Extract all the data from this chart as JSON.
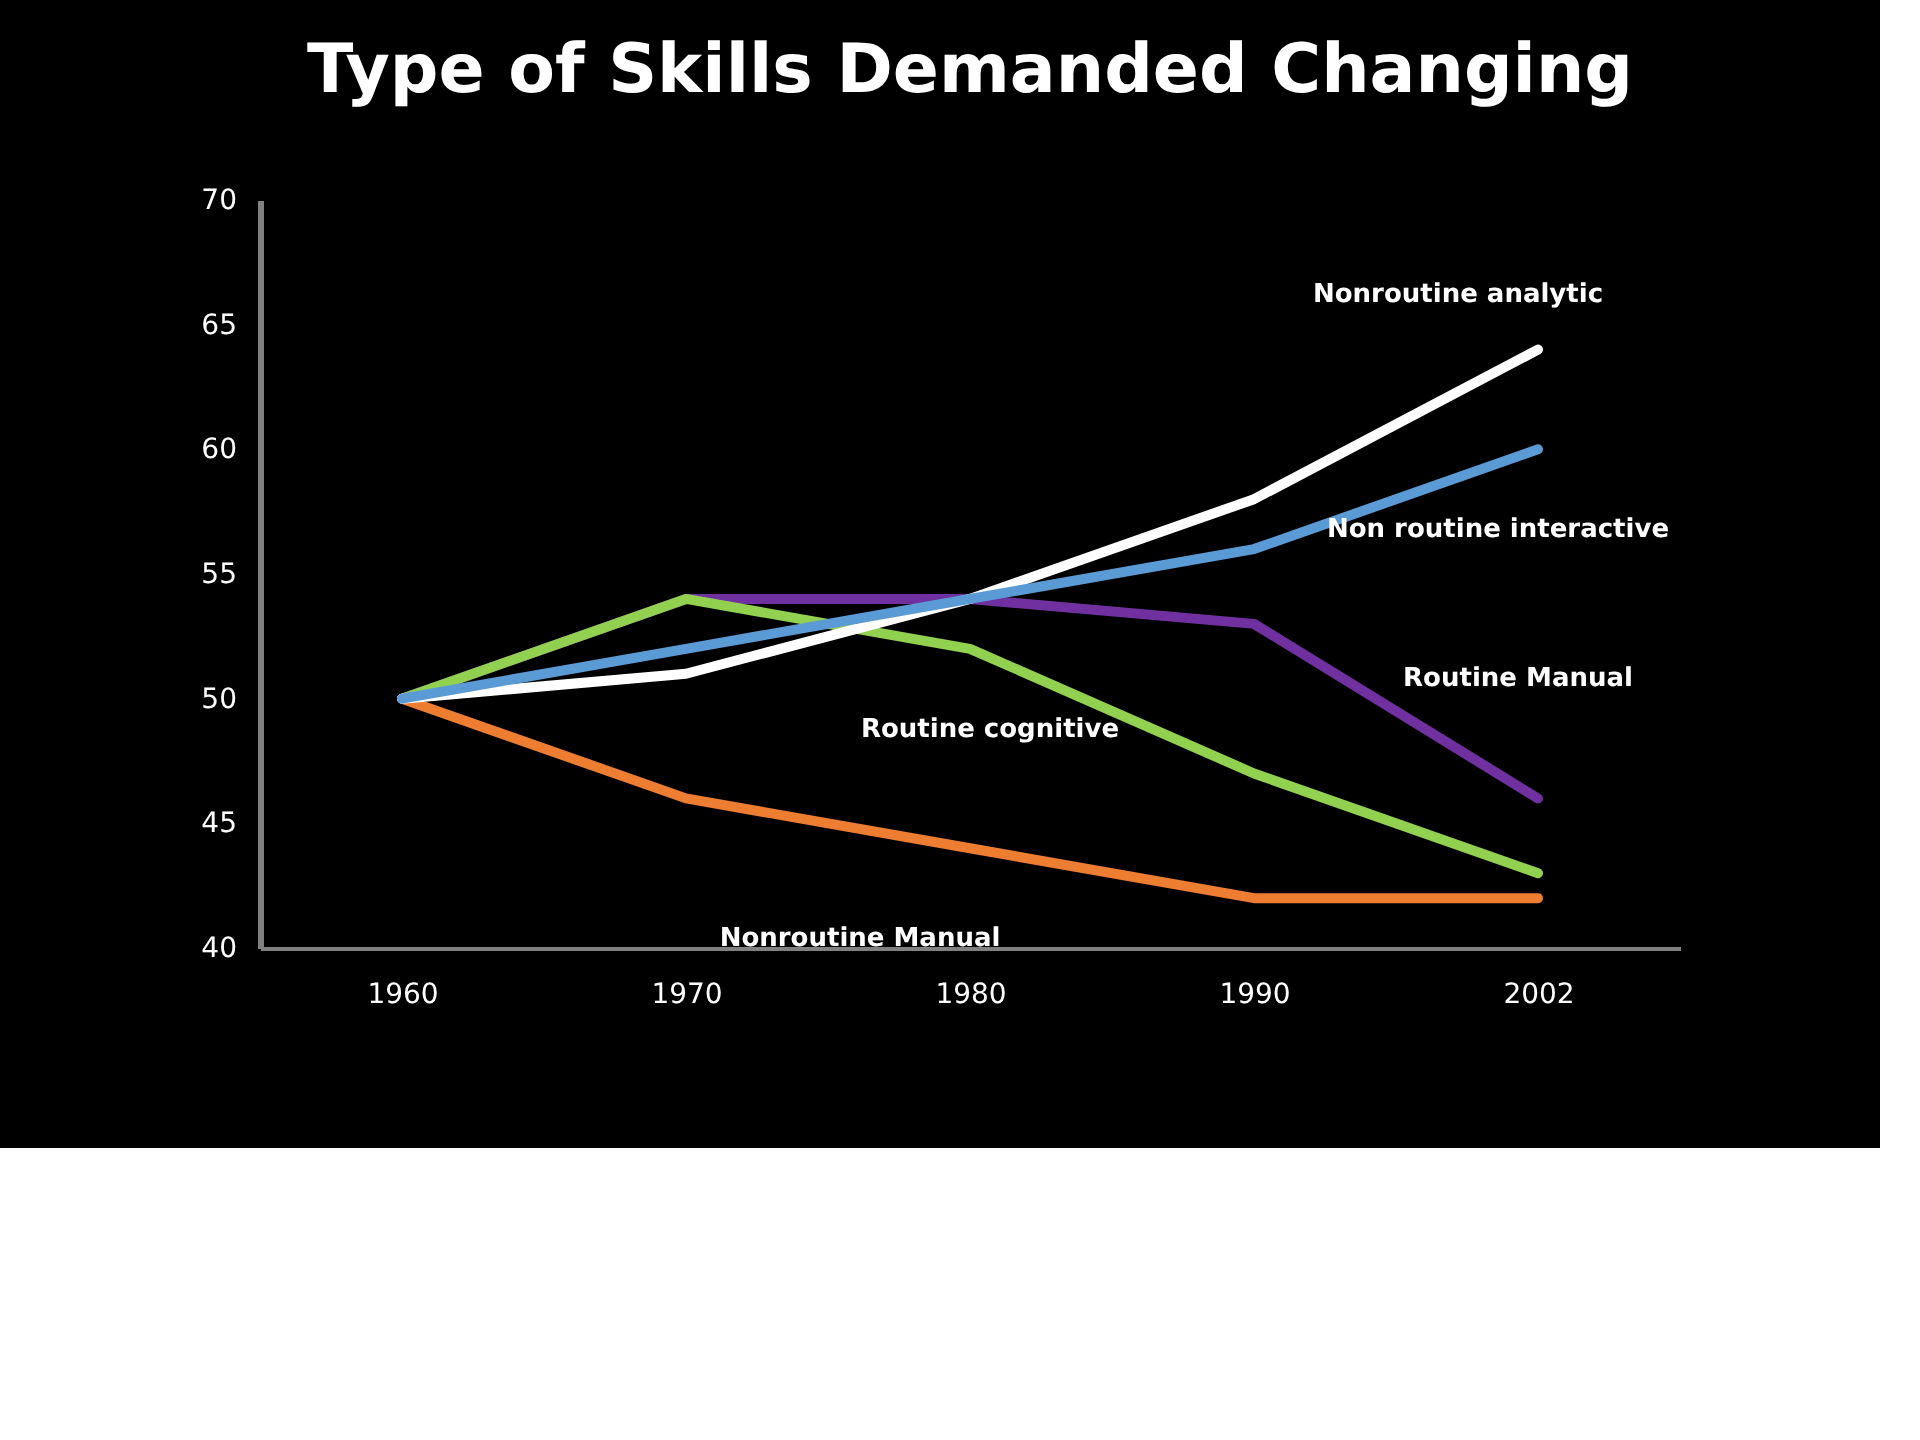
{
  "chart_data": {
    "type": "line",
    "title": "Type of Skills Demanded Changing",
    "categories": [
      "1960",
      "1970",
      "1980",
      "1990",
      "2002"
    ],
    "series": [
      {
        "name": "Routine Manual",
        "color": "#7030a0",
        "values": [
          50,
          54,
          54,
          53,
          46
        ]
      },
      {
        "name": "Routine cognitive",
        "color": "#92d050",
        "values": [
          50,
          54,
          52,
          47,
          43
        ]
      },
      {
        "name": "Nonroutine Manual",
        "color": "#ed7d31",
        "values": [
          50,
          46,
          44,
          42,
          42
        ]
      },
      {
        "name": "Nonroutine analytic",
        "color": "#ffffff",
        "values": [
          50,
          51,
          54,
          58,
          64
        ]
      },
      {
        "name": "Non routine interactive",
        "color": "#5b9bd5",
        "values": [
          50,
          52,
          54,
          56,
          60
        ]
      }
    ],
    "ylim": [
      40,
      70
    ],
    "yticks": [
      40,
      45,
      50,
      55,
      60,
      65,
      70
    ],
    "marker": "none",
    "line_style": "solid"
  }
}
